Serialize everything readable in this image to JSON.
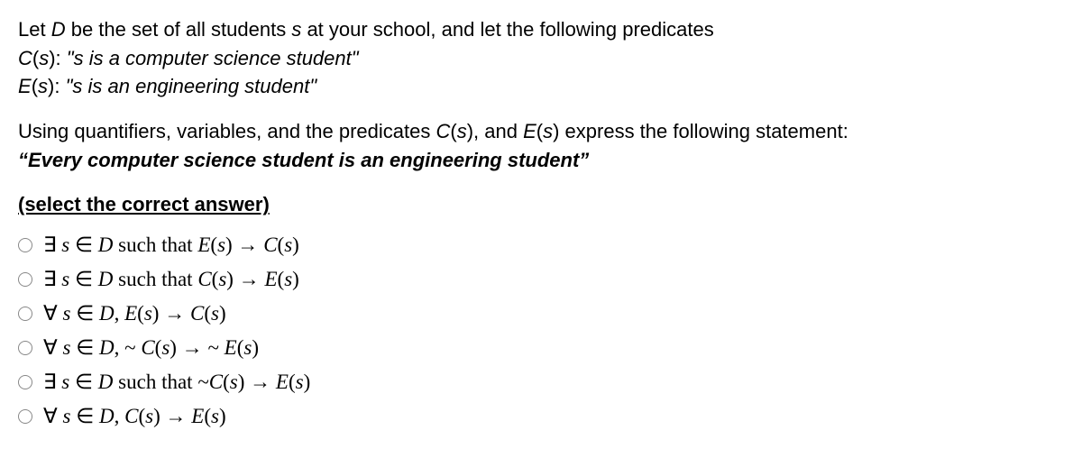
{
  "prompt": {
    "line1_pre": "Let ",
    "line1_D": "D",
    "line1_mid": " be the set of all students ",
    "line1_s": "s ",
    "line1_post": " at your school, and let the following predicates",
    "line2_pre": "C",
    "line2_paren": "(",
    "line2_s": "s",
    "line2_close": "):  ",
    "line2_quote": "\"s is a computer science student\"",
    "line3_pre": "E",
    "line3_paren": "(",
    "line3_s": "s",
    "line3_close": "): ",
    "line3_quote": "\"s is an engineering student\""
  },
  "question": {
    "line1_pre": "Using quantifiers, variables, and the predicates ",
    "line1_C": "C",
    "line1_p1": "(",
    "line1_s1": "s",
    "line1_p2": "), and ",
    "line1_E": "E",
    "line1_p3": "(",
    "line1_s2": "s",
    "line1_p4": ") express the following statement:",
    "statement": "“Every computer science student is an engineering student”"
  },
  "instruction": "(select the correct answer)",
  "options": [
    "∃ s  ∈ D such that E(s) → C(s)",
    "∃ s  ∈ D such that C(s) → E(s)",
    "∀ s  ∈ D, E(s) → C(s)",
    "∀ s  ∈ D, ~ C(s) → ~ E(s)",
    "∃ s  ∈ D such that ~C(s) → E(s)",
    "∀ s  ∈ D, C(s) → E(s)"
  ]
}
